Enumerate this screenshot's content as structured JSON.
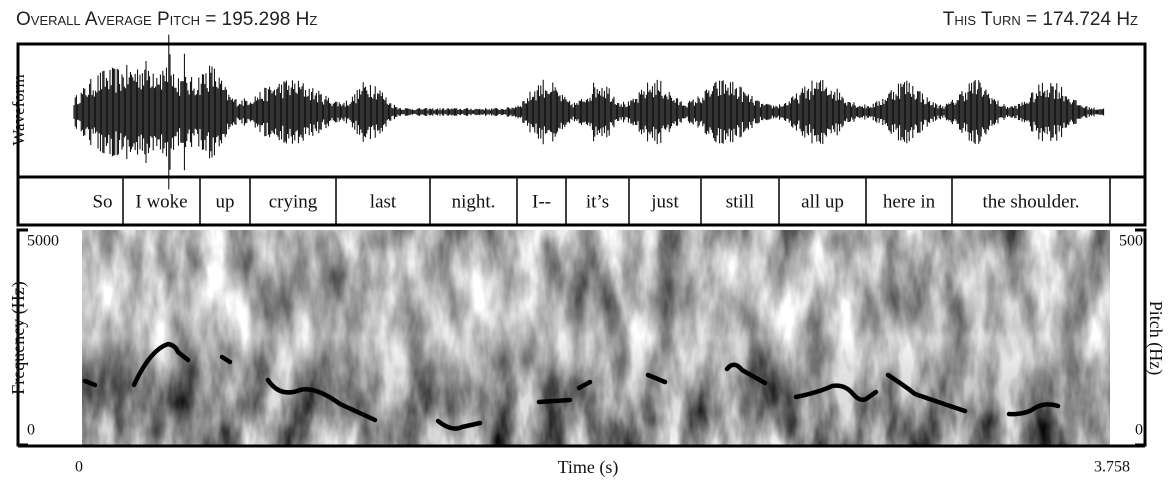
{
  "header": {
    "left": "Overall Average Pitch = 195.298 Hz",
    "right": "This Turn = 174.724 Hz"
  },
  "waveform": {
    "label": "Waveform"
  },
  "words": [
    "So",
    "I woke",
    "up",
    "crying",
    "last",
    "night.",
    "I--",
    "it’s",
    "just",
    "still",
    "all up",
    "here in",
    "the shoulder."
  ],
  "spectrogram": {
    "left_label": "Frequency (Hz)",
    "left_top": "5000",
    "left_bottom": "0",
    "right_label": "Pitch (Hz)",
    "right_top": "500",
    "right_bottom": "0"
  },
  "time_axis": {
    "label": "Time (s)",
    "start": "0",
    "end": "3.758"
  }
}
